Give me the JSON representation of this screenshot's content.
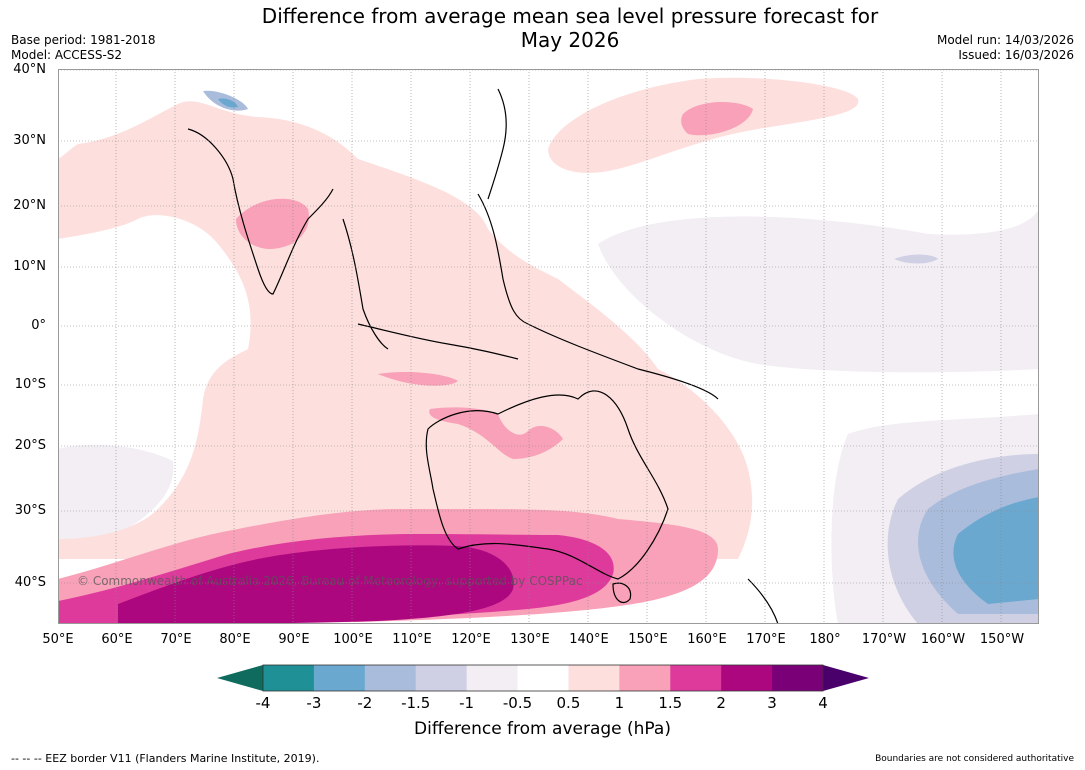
{
  "title": "Difference from average mean sea level pressure forecast for May 2026",
  "title_line1": "Difference from average mean sea level pressure forecast for",
  "title_line2": "May 2026",
  "base_period": "Base period: 1981-2018",
  "model": "Model: ACCESS-S2",
  "model_run": "Model run: 14/03/2026",
  "issued": "Issued: 16/03/2026",
  "watermark": "© Commonwealth of Australia 2026, Bureau of Meteorology; supported by COSPPac",
  "lat_labels": [
    "40°N",
    "30°N",
    "20°N",
    "10°N",
    "0°",
    "10°S",
    "20°S",
    "30°S",
    "40°S"
  ],
  "lon_labels": [
    "50°E",
    "60°E",
    "70°E",
    "80°E",
    "90°E",
    "100°E",
    "110°E",
    "120°E",
    "130°E",
    "140°E",
    "150°E",
    "160°E",
    "170°E",
    "180°",
    "170°W",
    "160°W",
    "150°W"
  ],
  "colorbar": {
    "title": "Difference from average (hPa)",
    "ticks": [
      "-4",
      "-3",
      "-2",
      "-1.5",
      "-1",
      "-0.5",
      "0.5",
      "1",
      "1.5",
      "2",
      "3",
      "4"
    ],
    "colors": [
      "#0e6b5e",
      "#1f9095",
      "#6aa8d0",
      "#a9bcdc",
      "#cfd0e4",
      "#f2eef4",
      "#ffffff",
      "#fde0de",
      "#f8a1b8",
      "#de3a9c",
      "#ad0780",
      "#7a0077",
      "#4a006a"
    ]
  },
  "footer_left": "--  --  -- EEZ border V11 (Flanders Marine Institute, 2019).",
  "footer_right": "Boundaries are not considered authoritative"
}
